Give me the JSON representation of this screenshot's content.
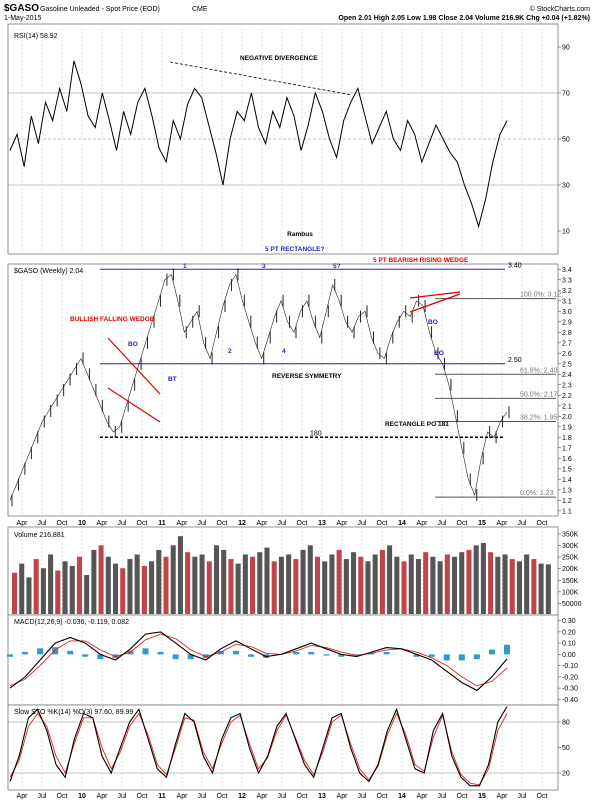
{
  "header": {
    "symbol": "$GASO",
    "name": "Gasoline Unleaded - Spot Price (EOD)",
    "exchange": "CME",
    "date": "1-May-2015",
    "quote": "Open 2.01  High 2.05  Low 1.98  Close 2.04  Volume 216.9K  Chg +0.04 (+1.82%)",
    "brand": "© StockCharts.com",
    "title_text": "Rambus"
  },
  "colors": {
    "bar": "#222222",
    "up_volume": "#555555",
    "down_volume": "#c0444a",
    "channel": "#2222cc",
    "annotation_red": "#dd0000",
    "macd_hist": "#3399cc",
    "signal": "#dd2222"
  },
  "chart_data": [
    {
      "type": "line",
      "panel": "rsi",
      "legend": "RSI(14) 58.92",
      "ylim": [
        0,
        100
      ],
      "yticks": [
        "90",
        "70",
        "50",
        "30",
        "10"
      ],
      "reference_lines": [
        70,
        50,
        30
      ],
      "annotations": [
        "NEGATIVE DIVERGENCE"
      ],
      "series": [
        {
          "values": [
            45,
            52,
            38,
            60,
            48,
            66,
            58,
            72,
            62,
            84,
            74,
            60,
            55,
            70,
            58,
            45,
            62,
            52,
            66,
            72,
            60,
            46,
            40,
            58,
            50,
            65,
            72,
            68,
            56,
            44,
            30,
            50,
            62,
            58,
            70,
            55,
            48,
            62,
            55,
            68,
            60,
            45,
            56,
            70,
            62,
            50,
            42,
            58,
            66,
            72,
            60,
            48,
            55,
            62,
            50,
            45,
            58,
            52,
            40,
            48,
            56,
            50,
            44,
            40,
            30,
            22,
            12,
            24,
            40,
            52,
            58
          ]
        }
      ]
    },
    {
      "type": "line",
      "panel": "price",
      "legend": "$GASO (Weekly) 2.04",
      "ylim": [
        1.05,
        3.45
      ],
      "yticks": [
        "3.4",
        "3.3",
        "3.2",
        "3.1",
        "3.0",
        "2.9",
        "2.8",
        "2.7",
        "2.6",
        "2.5",
        "2.4",
        "2.3",
        "2.2",
        "2.1",
        "2.0",
        "1.9",
        "1.8",
        "1.7",
        "1.6",
        "1.5",
        "1.4",
        "1.3",
        "1.2",
        "1.1"
      ],
      "xticks": [
        "Apr",
        "Jul",
        "Oct",
        "10",
        "Apr",
        "Jul",
        "Oct",
        "11",
        "Apr",
        "Jul",
        "Oct",
        "12",
        "Apr",
        "Jul",
        "Oct",
        "13",
        "Apr",
        "Jul",
        "Oct",
        "14",
        "Apr",
        "Jul",
        "Oct",
        "15",
        "Apr",
        "Jul",
        "Oct"
      ],
      "series": [
        {
          "values": [
            1.2,
            1.35,
            1.5,
            1.65,
            1.8,
            1.95,
            2.05,
            2.15,
            2.25,
            2.35,
            2.45,
            2.55,
            2.4,
            2.25,
            2.1,
            1.95,
            1.85,
            1.9,
            2.1,
            2.3,
            2.5,
            2.7,
            2.9,
            3.1,
            3.3,
            3.35,
            3.1,
            2.8,
            2.9,
            3.0,
            2.7,
            2.55,
            2.8,
            3.05,
            3.25,
            3.35,
            3.1,
            2.9,
            2.7,
            2.55,
            2.75,
            2.95,
            3.1,
            2.9,
            2.8,
            3.0,
            3.1,
            2.9,
            2.75,
            3.0,
            3.25,
            3.1,
            2.9,
            2.8,
            2.95,
            3.0,
            2.75,
            2.6,
            2.55,
            2.75,
            2.9,
            3.0,
            2.95,
            3.1,
            3.05,
            2.8,
            2.6,
            2.5,
            2.3,
            2.0,
            1.7,
            1.4,
            1.25,
            1.6,
            1.85,
            1.8,
            1.95,
            2.04
          ]
        }
      ],
      "levels": [
        {
          "value": 3.4,
          "label": "3.40"
        },
        {
          "value": 2.5,
          "label": "2.50"
        },
        {
          "value": 1.8,
          "label": "180"
        },
        {
          "value": 3.12,
          "label": "100.0%: 3.12"
        },
        {
          "value": 2.4,
          "label": "61.8%: 2.40"
        },
        {
          "value": 2.17,
          "label": "50.0%: 2.17"
        },
        {
          "value": 1.95,
          "label": "38.2%: 1.95"
        },
        {
          "value": 1.23,
          "label": "0.0%: 1.23"
        }
      ],
      "annotations": [
        "5 PT RECTANGLE?",
        "5 PT BEARISH RISING WEDGE",
        "BULLISH FALLING WEDGE",
        "REVERSE SYMMETRY",
        "RECTANGLE PO 181",
        "BO",
        "BT",
        "BO",
        "BO",
        "1",
        "2",
        "3",
        "4",
        "5?"
      ]
    },
    {
      "type": "bar",
      "panel": "volume",
      "legend": "Volume 216,881",
      "yticks": [
        "350K",
        "300K",
        "250K",
        "200K",
        "150K",
        "100K",
        "50000"
      ],
      "ylim": [
        0,
        380000
      ],
      "values": [
        180000,
        220000,
        160000,
        240000,
        200000,
        260000,
        190000,
        230000,
        210000,
        250000,
        170000,
        280000,
        300000,
        250000,
        220000,
        200000,
        240000,
        260000,
        210000,
        230000,
        280000,
        250000,
        300000,
        340000,
        270000,
        250000,
        260000,
        230000,
        300000,
        280000,
        240000,
        220000,
        260000,
        250000,
        270000,
        290000,
        230000,
        250000,
        260000,
        240000,
        280000,
        300000,
        250000,
        230000,
        260000,
        280000,
        240000,
        270000,
        250000,
        230000,
        260000,
        280000,
        300000,
        250000,
        230000,
        260000,
        240000,
        270000,
        250000,
        230000,
        260000,
        250000,
        270000,
        280000,
        300000,
        310000,
        270000,
        250000,
        260000,
        240000,
        230000,
        260000,
        240000,
        220000,
        217000
      ]
    },
    {
      "type": "line",
      "panel": "macd",
      "legend": "MACD(12,26,9) -0.036, -0.119, 0.082",
      "ylim": [
        -0.45,
        0.35
      ],
      "yticks": [
        "0.30",
        "0.20",
        "0.10",
        "0.00",
        "-0.10",
        "-0.20",
        "-0.30",
        "-0.40"
      ],
      "series": [
        {
          "name": "MACD",
          "values": [
            -0.3,
            -0.2,
            -0.05,
            0.1,
            0.15,
            0.1,
            0.0,
            -0.05,
            0.05,
            0.18,
            0.2,
            0.1,
            0.0,
            -0.05,
            0.05,
            0.12,
            0.05,
            -0.02,
            0.0,
            0.05,
            0.1,
            0.05,
            0.0,
            -0.02,
            0.02,
            0.06,
            0.05,
            0.0,
            -0.05,
            -0.15,
            -0.25,
            -0.32,
            -0.2,
            -0.04
          ]
        },
        {
          "name": "Signal",
          "values": [
            -0.28,
            -0.22,
            -0.1,
            0.04,
            0.12,
            0.12,
            0.04,
            -0.02,
            0.02,
            0.13,
            0.18,
            0.14,
            0.04,
            -0.02,
            0.02,
            0.09,
            0.07,
            0.01,
            0.0,
            0.03,
            0.08,
            0.06,
            0.02,
            -0.01,
            0.01,
            0.04,
            0.05,
            0.02,
            -0.03,
            -0.1,
            -0.2,
            -0.28,
            -0.24,
            -0.12
          ]
        }
      ]
    },
    {
      "type": "line",
      "panel": "stochastic",
      "legend": "Slow STO %K(14) %D(3) 97.60, 89.99",
      "ylim": [
        0,
        100
      ],
      "yticks": [
        "80",
        "50",
        "20"
      ],
      "reference_lines": [
        80,
        20
      ],
      "series": [
        {
          "name": "%K",
          "values": [
            10,
            40,
            85,
            95,
            70,
            30,
            15,
            60,
            90,
            85,
            40,
            20,
            50,
            80,
            95,
            60,
            25,
            15,
            55,
            90,
            80,
            40,
            20,
            60,
            85,
            90,
            50,
            20,
            40,
            75,
            90,
            60,
            30,
            15,
            50,
            85,
            90,
            50,
            20,
            10,
            30,
            70,
            95,
            60,
            25,
            20,
            70,
            90,
            40,
            15,
            5,
            5,
            30,
            80,
            98
          ]
        },
        {
          "name": "%D",
          "values": [
            15,
            35,
            75,
            90,
            75,
            40,
            20,
            55,
            85,
            85,
            50,
            25,
            45,
            75,
            90,
            65,
            30,
            18,
            50,
            85,
            82,
            45,
            25,
            55,
            80,
            88,
            55,
            25,
            38,
            70,
            88,
            62,
            35,
            18,
            45,
            80,
            88,
            55,
            25,
            12,
            28,
            65,
            90,
            65,
            30,
            22,
            62,
            88,
            45,
            18,
            8,
            6,
            25,
            70,
            90
          ]
        }
      ]
    }
  ]
}
